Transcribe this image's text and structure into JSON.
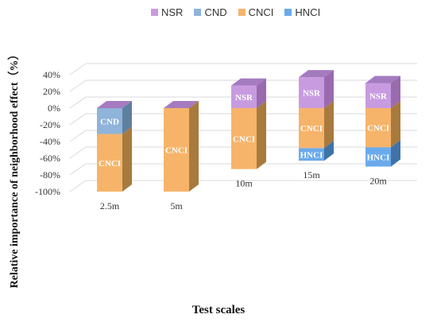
{
  "chart_data": {
    "type": "bar",
    "stacked": true,
    "three_d": true,
    "xlabel": "Test scales",
    "ylabel": "Relative importance of neighborhood effect（%）",
    "ylim": [
      -100,
      40
    ],
    "yticks": [
      40,
      20,
      0,
      -20,
      -40,
      -60,
      -80,
      -100
    ],
    "ytick_labels": [
      "40%",
      "20%",
      "0%",
      "-20%",
      "-40%",
      "-60%",
      "-80%",
      "-100%"
    ],
    "categories": [
      "2.5m",
      "5m",
      "10m",
      "15m",
      "20m"
    ],
    "legend_position": "top",
    "series": [
      {
        "name": "NSR",
        "color": "#c89be0",
        "side_color": "#9a6aae",
        "top_color": "#a57bc0",
        "values": [
          0,
          0,
          27,
          37,
          30
        ]
      },
      {
        "name": "CND",
        "color": "#8fb3d9",
        "side_color": "#5f7f9f",
        "top_color": "#a57bc0",
        "values": [
          -31,
          0,
          0,
          0,
          0
        ]
      },
      {
        "name": "CNCI",
        "color": "#f6b46a",
        "side_color": "#a87a3e",
        "top_color": "#a57bc0",
        "values": [
          -69,
          -100,
          -73,
          -48,
          -47
        ]
      },
      {
        "name": "HNCI",
        "color": "#6aaaec",
        "side_color": "#3f72a6",
        "top_color": "#a57bc0",
        "values": [
          0,
          0,
          0,
          -15,
          -23
        ]
      }
    ]
  }
}
